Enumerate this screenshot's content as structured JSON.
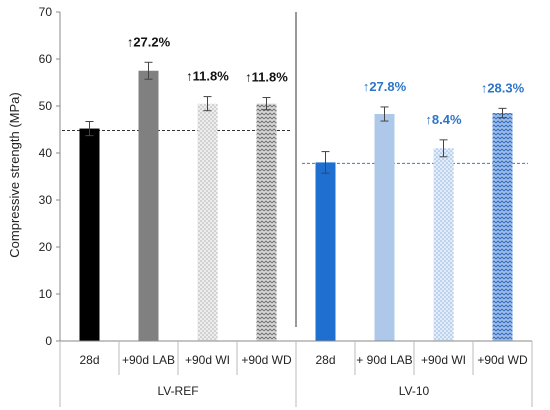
{
  "chart_data": {
    "type": "bar",
    "ylabel": "Compressive strength (MPa)",
    "ylim": [
      0,
      70
    ],
    "yticks": [
      0,
      10,
      20,
      30,
      40,
      50,
      60,
      70
    ],
    "grid": false,
    "groups": [
      {
        "name": "LV-REF",
        "reference_line": 44.8,
        "reference_color": "#333333",
        "annotation_color": "#111111",
        "bars": [
          {
            "label": "28d",
            "value": 45.2,
            "error": 1.5,
            "color": "#000000",
            "pattern": "solid",
            "annotation": ""
          },
          {
            "label": "+90d LAB",
            "value": 57.5,
            "error": 1.8,
            "color": "#808080",
            "pattern": "solid",
            "annotation": "↑27.2%"
          },
          {
            "label": "+90d WI",
            "value": 50.5,
            "error": 1.5,
            "color": "#cfcfcf",
            "pattern": "dots",
            "annotation": "↑11.8%"
          },
          {
            "label": "+90d WD",
            "value": 50.5,
            "error": 1.3,
            "color": "#a8a8a8",
            "pattern": "waves",
            "annotation": "↑11.8%"
          }
        ]
      },
      {
        "name": "LV-10",
        "reference_line": 37.8,
        "reference_color": "#2f7fd6",
        "annotation_color": "#2e75c8",
        "bars": [
          {
            "label": "28d",
            "value": 38.0,
            "error": 2.3,
            "color": "#1f6fd0",
            "pattern": "solid",
            "annotation": ""
          },
          {
            "label": "+ 90d LAB",
            "value": 48.3,
            "error": 1.5,
            "color": "#aec8ea",
            "pattern": "solid",
            "annotation": "↑27.8%"
          },
          {
            "label": "+90d WI",
            "value": 41.0,
            "error": 1.8,
            "color": "#b9d0ee",
            "pattern": "dots",
            "annotation": "↑8.4%"
          },
          {
            "label": "+90d WD",
            "value": 48.5,
            "error": 1.0,
            "color": "#4d87d4",
            "pattern": "waves",
            "annotation": "↑28.3%"
          }
        ]
      }
    ]
  }
}
